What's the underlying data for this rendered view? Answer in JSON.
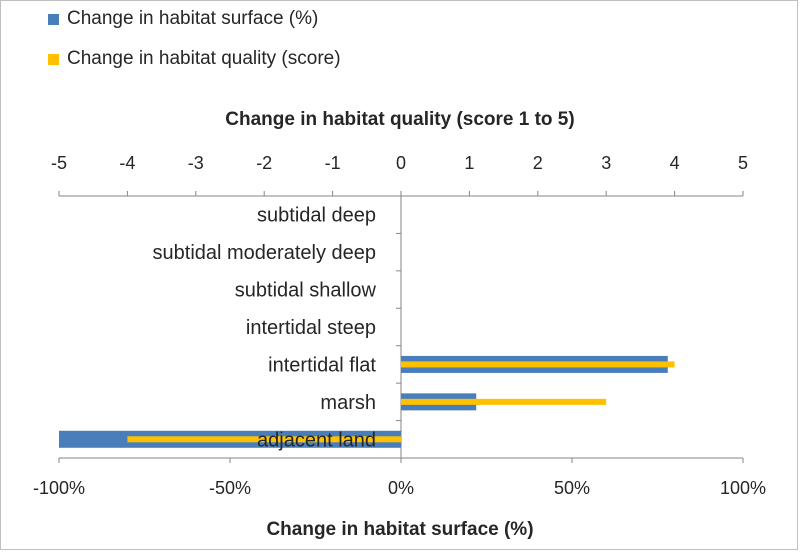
{
  "chart_data": {
    "type": "bar",
    "orientation": "horizontal",
    "categories": [
      "subtidal deep",
      "subtidal moderately deep",
      "subtidal shallow",
      "intertidal steep",
      "intertidal flat",
      "marsh",
      "adjacent land"
    ],
    "series": [
      {
        "name": "Change in habitat surface (%)",
        "axis": "bottom",
        "color": "#4a7ebb",
        "values": [
          0,
          0,
          0,
          0,
          78,
          22,
          -100
        ]
      },
      {
        "name": "Change in habitat quality (score)",
        "axis": "top",
        "color": "#ffc000",
        "values": [
          0,
          0,
          0,
          0,
          4,
          3,
          -4
        ]
      }
    ],
    "x_top": {
      "label": "Change in habitat quality (score 1 to 5)",
      "range": [
        -5,
        5
      ],
      "ticks": [
        "-5",
        "-4",
        "-3",
        "-2",
        "-1",
        "0",
        "1",
        "2",
        "3",
        "4",
        "5"
      ]
    },
    "x_bottom": {
      "label": "Change in habitat surface (%)",
      "range": [
        -100,
        100
      ],
      "ticks": [
        "-100%",
        "-50%",
        "0%",
        "50%",
        "100%"
      ]
    },
    "legend_position": "top-left",
    "grid": false
  }
}
